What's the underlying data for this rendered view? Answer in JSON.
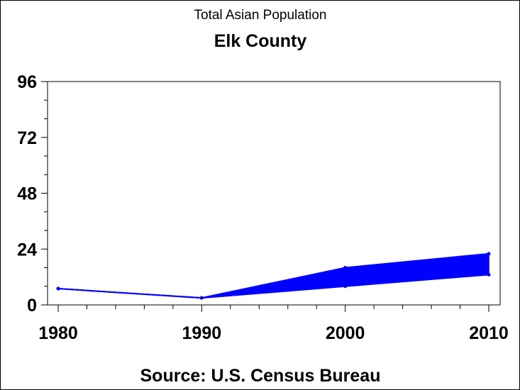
{
  "chart_data": {
    "type": "line",
    "title": "Total Asian Population",
    "subtitle": "Elk County",
    "footnote": "Source: U.S. Census Bureau",
    "xlabel": "",
    "ylabel": "",
    "x": [
      1980,
      1990,
      2000,
      2010
    ],
    "x_tick_labels": [
      "1980",
      "1990",
      "2000",
      "2010"
    ],
    "y_tick_labels": [
      "0",
      "24",
      "48",
      "72",
      "96"
    ],
    "ylim": [
      0,
      96
    ],
    "xlim": [
      1980,
      2010
    ],
    "grid": false,
    "series": [
      {
        "name": "Total Asian Population (upper)",
        "values": [
          7,
          3,
          16,
          22
        ]
      },
      {
        "name": "Total Asian Population (lower)",
        "values": [
          7,
          3,
          8,
          13
        ]
      }
    ],
    "color": "#0000ff"
  }
}
